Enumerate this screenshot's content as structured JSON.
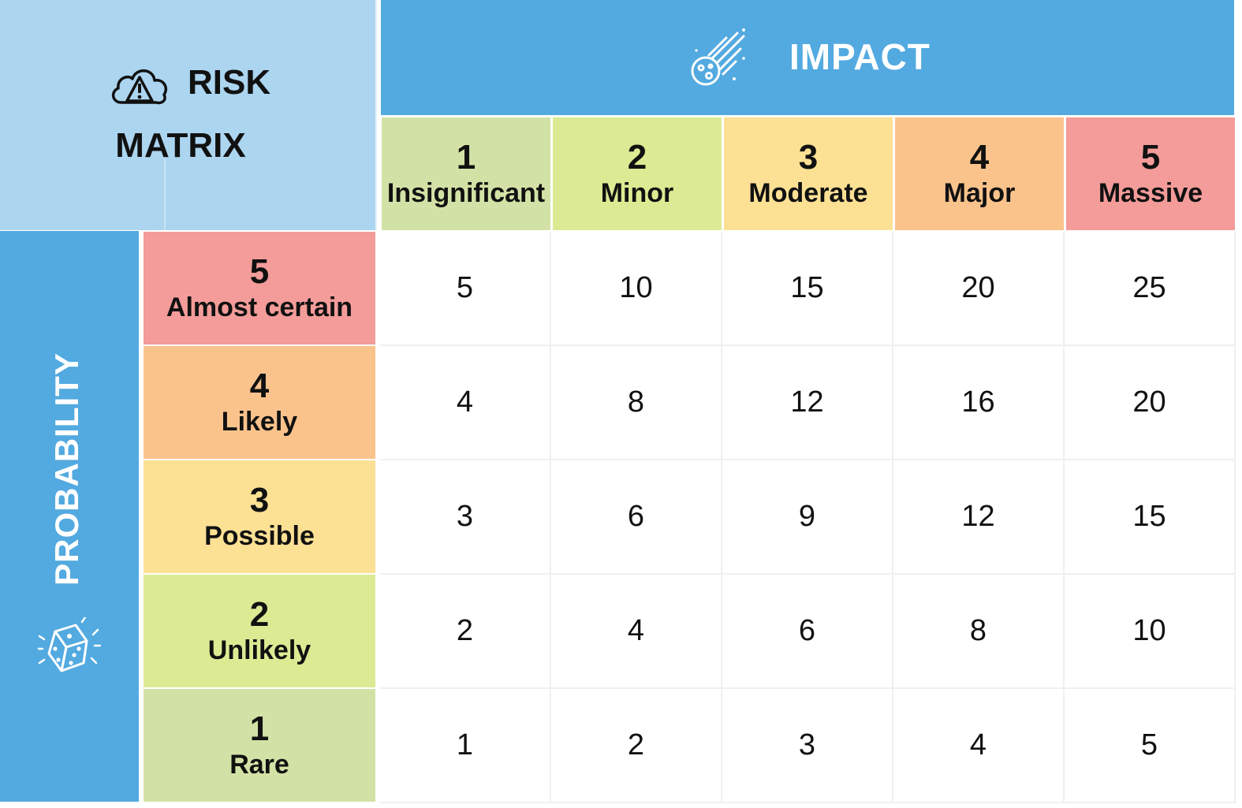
{
  "title": {
    "line1": "RISK",
    "line2": "MATRIX",
    "icon": "cloud-warning-icon"
  },
  "impact": {
    "title": "IMPACT",
    "icon": "comet-icon",
    "levels": [
      {
        "num": "1",
        "label": "Insignificant",
        "color": "#d2e2a6"
      },
      {
        "num": "2",
        "label": "Minor",
        "color": "#dcea93"
      },
      {
        "num": "3",
        "label": "Moderate",
        "color": "#fce094"
      },
      {
        "num": "4",
        "label": "Major",
        "color": "#fbc38c"
      },
      {
        "num": "5",
        "label": "Massive",
        "color": "#f39c99"
      }
    ]
  },
  "probability": {
    "title": "PROBABILITY",
    "icon": "dice-icon",
    "levels": [
      {
        "num": "5",
        "label": "Almost certain",
        "color": "#f39c99"
      },
      {
        "num": "4",
        "label": "Likely",
        "color": "#fbc38c"
      },
      {
        "num": "3",
        "label": "Possible",
        "color": "#fce094"
      },
      {
        "num": "2",
        "label": "Unlikely",
        "color": "#dcea93"
      },
      {
        "num": "1",
        "label": "Rare",
        "color": "#d2e2a6"
      }
    ]
  },
  "matrix": [
    [
      "5",
      "10",
      "15",
      "20",
      "25"
    ],
    [
      "4",
      "8",
      "12",
      "16",
      "20"
    ],
    [
      "3",
      "6",
      "9",
      "12",
      "15"
    ],
    [
      "2",
      "4",
      "6",
      "8",
      "10"
    ],
    [
      "1",
      "2",
      "3",
      "4",
      "5"
    ]
  ]
}
